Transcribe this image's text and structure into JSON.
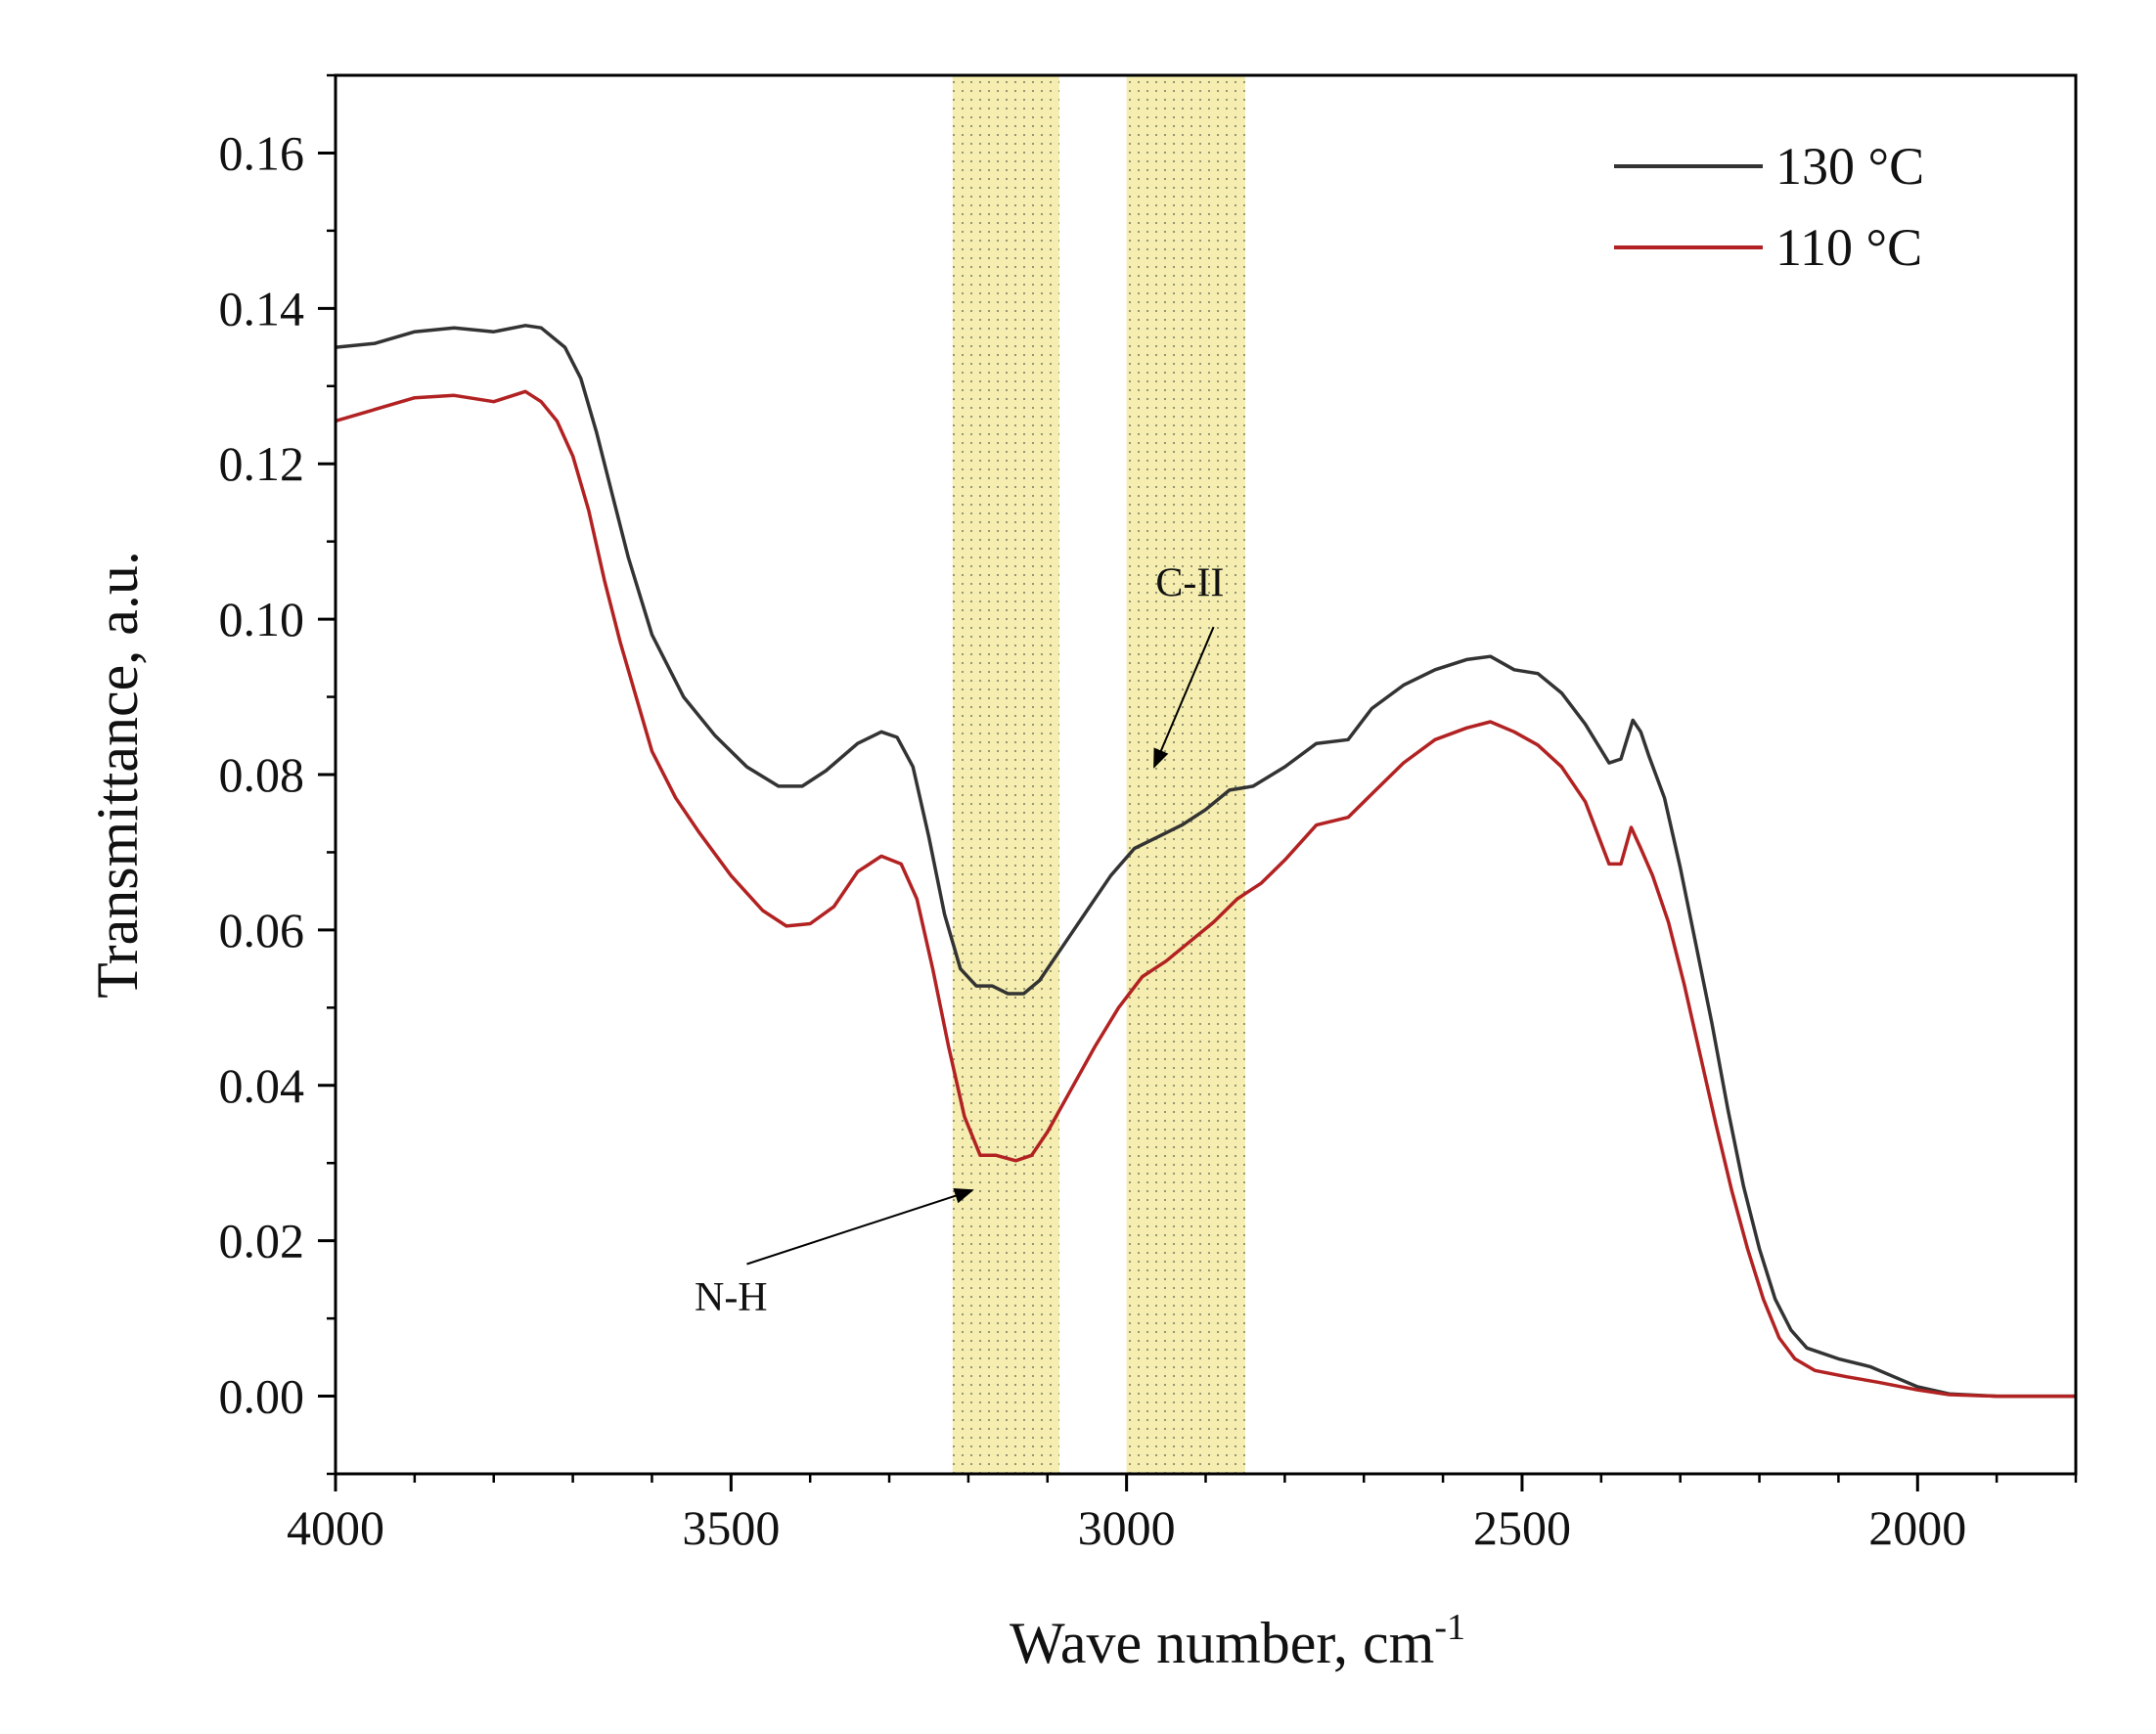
{
  "chart_data": {
    "type": "line",
    "title": "",
    "xlabel": "Wave number, cm",
    "xlabel_superscript": "-1",
    "ylabel": "Transmittance, a.u.",
    "xlim": [
      4000,
      1800
    ],
    "ylim": [
      -0.01,
      0.17
    ],
    "x_ticks": [
      4000,
      3500,
      3000,
      2500,
      2000
    ],
    "x_tick_labels": [
      "4000",
      "3500",
      "3000",
      "2500",
      "2000"
    ],
    "y_ticks": [
      0.0,
      0.02,
      0.04,
      0.06,
      0.08,
      0.1,
      0.12,
      0.14,
      0.16
    ],
    "y_tick_labels": [
      "0.00",
      "0.02",
      "0.04",
      "0.06",
      "0.08",
      "0.10",
      "0.12",
      "0.14",
      "0.16"
    ],
    "grid": false,
    "legend_position": "top-right",
    "shaded_regions": [
      {
        "name": "N-H band",
        "from": 3220,
        "to": 3085,
        "color": "#f5eeb0"
      },
      {
        "name": "C-H band",
        "from": 3000,
        "to": 2850,
        "color": "#f5eeb0"
      }
    ],
    "annotations": [
      {
        "text": "N-H",
        "text_x": 3500,
        "text_y": 0.011,
        "arrow_from": [
          3480,
          0.017
        ],
        "arrow_to": [
          3195,
          0.0265
        ]
      },
      {
        "text": "C-II",
        "text_x": 2920,
        "text_y": 0.103,
        "arrow_from": [
          2890,
          0.099
        ],
        "arrow_to": [
          2965,
          0.081
        ]
      }
    ],
    "series": [
      {
        "name": "130 °C",
        "color": "#333333",
        "points": [
          [
            4000,
            0.135
          ],
          [
            3950,
            0.1355
          ],
          [
            3900,
            0.137
          ],
          [
            3850,
            0.1375
          ],
          [
            3800,
            0.137
          ],
          [
            3760,
            0.1378
          ],
          [
            3740,
            0.1375
          ],
          [
            3710,
            0.135
          ],
          [
            3690,
            0.131
          ],
          [
            3670,
            0.124
          ],
          [
            3650,
            0.116
          ],
          [
            3630,
            0.108
          ],
          [
            3600,
            0.098
          ],
          [
            3560,
            0.09
          ],
          [
            3520,
            0.085
          ],
          [
            3480,
            0.081
          ],
          [
            3440,
            0.0785
          ],
          [
            3410,
            0.0785
          ],
          [
            3380,
            0.0805
          ],
          [
            3340,
            0.084
          ],
          [
            3310,
            0.0855
          ],
          [
            3290,
            0.0848
          ],
          [
            3270,
            0.081
          ],
          [
            3250,
            0.072
          ],
          [
            3230,
            0.062
          ],
          [
            3210,
            0.055
          ],
          [
            3190,
            0.0528
          ],
          [
            3170,
            0.0528
          ],
          [
            3150,
            0.0518
          ],
          [
            3130,
            0.0518
          ],
          [
            3110,
            0.0535
          ],
          [
            3080,
            0.058
          ],
          [
            3050,
            0.0625
          ],
          [
            3020,
            0.067
          ],
          [
            2990,
            0.0705
          ],
          [
            2960,
            0.072
          ],
          [
            2930,
            0.0735
          ],
          [
            2900,
            0.0755
          ],
          [
            2870,
            0.078
          ],
          [
            2840,
            0.0785
          ],
          [
            2800,
            0.081
          ],
          [
            2760,
            0.084
          ],
          [
            2720,
            0.0845
          ],
          [
            2690,
            0.0885
          ],
          [
            2650,
            0.0915
          ],
          [
            2610,
            0.0935
          ],
          [
            2570,
            0.0948
          ],
          [
            2540,
            0.0952
          ],
          [
            2510,
            0.0935
          ],
          [
            2480,
            0.093
          ],
          [
            2450,
            0.0905
          ],
          [
            2420,
            0.0865
          ],
          [
            2390,
            0.0815
          ],
          [
            2375,
            0.082
          ],
          [
            2360,
            0.087
          ],
          [
            2350,
            0.0855
          ],
          [
            2340,
            0.0825
          ],
          [
            2320,
            0.077
          ],
          [
            2300,
            0.068
          ],
          [
            2280,
            0.058
          ],
          [
            2260,
            0.048
          ],
          [
            2240,
            0.037
          ],
          [
            2220,
            0.027
          ],
          [
            2200,
            0.019
          ],
          [
            2180,
            0.0125
          ],
          [
            2160,
            0.0085
          ],
          [
            2140,
            0.0062
          ],
          [
            2100,
            0.0048
          ],
          [
            2060,
            0.0038
          ],
          [
            2030,
            0.0025
          ],
          [
            2000,
            0.0012
          ],
          [
            1960,
            0.0003
          ],
          [
            1900,
            0.0
          ],
          [
            1800,
            0.0
          ]
        ]
      },
      {
        "name": "110 °C",
        "color": "#b22222",
        "points": [
          [
            4000,
            0.1255
          ],
          [
            3950,
            0.127
          ],
          [
            3900,
            0.1285
          ],
          [
            3850,
            0.1288
          ],
          [
            3800,
            0.128
          ],
          [
            3760,
            0.1293
          ],
          [
            3740,
            0.128
          ],
          [
            3720,
            0.1255
          ],
          [
            3700,
            0.121
          ],
          [
            3680,
            0.114
          ],
          [
            3660,
            0.105
          ],
          [
            3640,
            0.097
          ],
          [
            3620,
            0.09
          ],
          [
            3600,
            0.083
          ],
          [
            3570,
            0.077
          ],
          [
            3540,
            0.0725
          ],
          [
            3500,
            0.067
          ],
          [
            3460,
            0.0625
          ],
          [
            3430,
            0.0605
          ],
          [
            3400,
            0.0608
          ],
          [
            3370,
            0.063
          ],
          [
            3340,
            0.0675
          ],
          [
            3310,
            0.0695
          ],
          [
            3285,
            0.0685
          ],
          [
            3265,
            0.064
          ],
          [
            3245,
            0.055
          ],
          [
            3225,
            0.045
          ],
          [
            3205,
            0.036
          ],
          [
            3185,
            0.031
          ],
          [
            3165,
            0.031
          ],
          [
            3140,
            0.0303
          ],
          [
            3120,
            0.031
          ],
          [
            3100,
            0.034
          ],
          [
            3070,
            0.0395
          ],
          [
            3040,
            0.045
          ],
          [
            3010,
            0.05
          ],
          [
            2980,
            0.054
          ],
          [
            2950,
            0.056
          ],
          [
            2920,
            0.0585
          ],
          [
            2890,
            0.061
          ],
          [
            2860,
            0.064
          ],
          [
            2830,
            0.066
          ],
          [
            2800,
            0.069
          ],
          [
            2760,
            0.0735
          ],
          [
            2720,
            0.0745
          ],
          [
            2690,
            0.0775
          ],
          [
            2650,
            0.0815
          ],
          [
            2610,
            0.0845
          ],
          [
            2570,
            0.086
          ],
          [
            2540,
            0.0868
          ],
          [
            2510,
            0.0855
          ],
          [
            2480,
            0.0838
          ],
          [
            2450,
            0.081
          ],
          [
            2420,
            0.0765
          ],
          [
            2390,
            0.0685
          ],
          [
            2375,
            0.0685
          ],
          [
            2362,
            0.0732
          ],
          [
            2350,
            0.0705
          ],
          [
            2335,
            0.067
          ],
          [
            2315,
            0.061
          ],
          [
            2295,
            0.053
          ],
          [
            2275,
            0.044
          ],
          [
            2255,
            0.035
          ],
          [
            2235,
            0.0265
          ],
          [
            2215,
            0.019
          ],
          [
            2195,
            0.0125
          ],
          [
            2175,
            0.0075
          ],
          [
            2155,
            0.0048
          ],
          [
            2130,
            0.0033
          ],
          [
            2090,
            0.0025
          ],
          [
            2050,
            0.0018
          ],
          [
            2000,
            0.0008
          ],
          [
            1960,
            0.0002
          ],
          [
            1900,
            0.0
          ],
          [
            1800,
            0.0
          ]
        ]
      }
    ]
  }
}
